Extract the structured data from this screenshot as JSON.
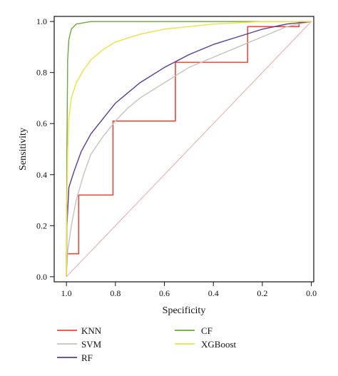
{
  "chart_data": {
    "type": "line",
    "title": "",
    "xlabel": "Specificity",
    "ylabel": "Sensitivity",
    "xlim": [
      1.05,
      -0.01
    ],
    "ylim": [
      -0.02,
      1.02
    ],
    "xaxis_reversed": true,
    "xticks": [
      1.0,
      0.8,
      0.6,
      0.4,
      0.2,
      0.0
    ],
    "xtick_labels": [
      "1.0",
      "0.8",
      "0.6",
      "0.4",
      "0.2",
      "0.0"
    ],
    "yticks": [
      0.0,
      0.2,
      0.4,
      0.6,
      0.8,
      1.0
    ],
    "ytick_labels": [
      "0.0",
      "0.2",
      "0.4",
      "0.6",
      "0.8",
      "1.0"
    ],
    "grid": false,
    "legend_position": "below",
    "reference_line": {
      "color": "#e8a8a8",
      "from": [
        1.0,
        0.0
      ],
      "to": [
        0.0,
        1.0
      ]
    },
    "series": [
      {
        "name": "KNN",
        "color": "#e8483c",
        "style": "step",
        "points": [
          [
            1.0,
            0.0
          ],
          [
            1.0,
            0.09
          ],
          [
            0.95,
            0.09
          ],
          [
            0.95,
            0.32
          ],
          [
            0.81,
            0.32
          ],
          [
            0.81,
            0.61
          ],
          [
            0.555,
            0.61
          ],
          [
            0.555,
            0.84
          ],
          [
            0.26,
            0.84
          ],
          [
            0.26,
            0.98
          ],
          [
            0.05,
            0.98
          ],
          [
            0.05,
            1.0
          ],
          [
            0.0,
            1.0
          ]
        ]
      },
      {
        "name": "SVM",
        "color": "#c8c2bc",
        "style": "line",
        "points": [
          [
            1.0,
            0.0
          ],
          [
            0.995,
            0.1
          ],
          [
            0.98,
            0.2
          ],
          [
            0.96,
            0.3
          ],
          [
            0.93,
            0.4
          ],
          [
            0.9,
            0.48
          ],
          [
            0.85,
            0.55
          ],
          [
            0.8,
            0.61
          ],
          [
            0.75,
            0.66
          ],
          [
            0.7,
            0.7
          ],
          [
            0.6,
            0.76
          ],
          [
            0.5,
            0.82
          ],
          [
            0.4,
            0.86
          ],
          [
            0.3,
            0.9
          ],
          [
            0.2,
            0.94
          ],
          [
            0.1,
            0.98
          ],
          [
            0.05,
            0.99
          ],
          [
            0.0,
            1.0
          ]
        ]
      },
      {
        "name": "RF",
        "color": "#5a3a9a",
        "style": "line",
        "points": [
          [
            1.0,
            0.0
          ],
          [
            0.998,
            0.2
          ],
          [
            0.99,
            0.35
          ],
          [
            0.97,
            0.41
          ],
          [
            0.94,
            0.49
          ],
          [
            0.9,
            0.56
          ],
          [
            0.85,
            0.62
          ],
          [
            0.8,
            0.68
          ],
          [
            0.75,
            0.72
          ],
          [
            0.7,
            0.76
          ],
          [
            0.6,
            0.82
          ],
          [
            0.5,
            0.87
          ],
          [
            0.4,
            0.91
          ],
          [
            0.3,
            0.94
          ],
          [
            0.2,
            0.97
          ],
          [
            0.1,
            0.99
          ],
          [
            0.0,
            1.0
          ]
        ]
      },
      {
        "name": "CF",
        "color": "#6aaa3a",
        "style": "line",
        "points": [
          [
            1.0,
            0.0
          ],
          [
            0.998,
            0.5
          ],
          [
            0.995,
            0.85
          ],
          [
            0.99,
            0.93
          ],
          [
            0.98,
            0.97
          ],
          [
            0.96,
            0.99
          ],
          [
            0.93,
            0.995
          ],
          [
            0.9,
            1.0
          ],
          [
            0.0,
            1.0
          ]
        ]
      },
      {
        "name": "XGBoost",
        "color": "#f2e040",
        "style": "line",
        "points": [
          [
            1.0,
            0.0
          ],
          [
            0.998,
            0.3
          ],
          [
            0.995,
            0.5
          ],
          [
            0.99,
            0.62
          ],
          [
            0.98,
            0.7
          ],
          [
            0.96,
            0.76
          ],
          [
            0.93,
            0.81
          ],
          [
            0.9,
            0.85
          ],
          [
            0.85,
            0.89
          ],
          [
            0.8,
            0.92
          ],
          [
            0.7,
            0.95
          ],
          [
            0.6,
            0.97
          ],
          [
            0.5,
            0.98
          ],
          [
            0.4,
            0.99
          ],
          [
            0.3,
            0.995
          ],
          [
            0.2,
            1.0
          ],
          [
            0.0,
            1.0
          ]
        ]
      }
    ],
    "legend": [
      {
        "name": "KNN",
        "color": "#e8483c"
      },
      {
        "name": "CF",
        "color": "#6aaa3a"
      },
      {
        "name": "SVM",
        "color": "#c8c2bc"
      },
      {
        "name": "XGBoost",
        "color": "#f2e040"
      },
      {
        "name": "RF",
        "color": "#5a3a9a"
      }
    ]
  }
}
